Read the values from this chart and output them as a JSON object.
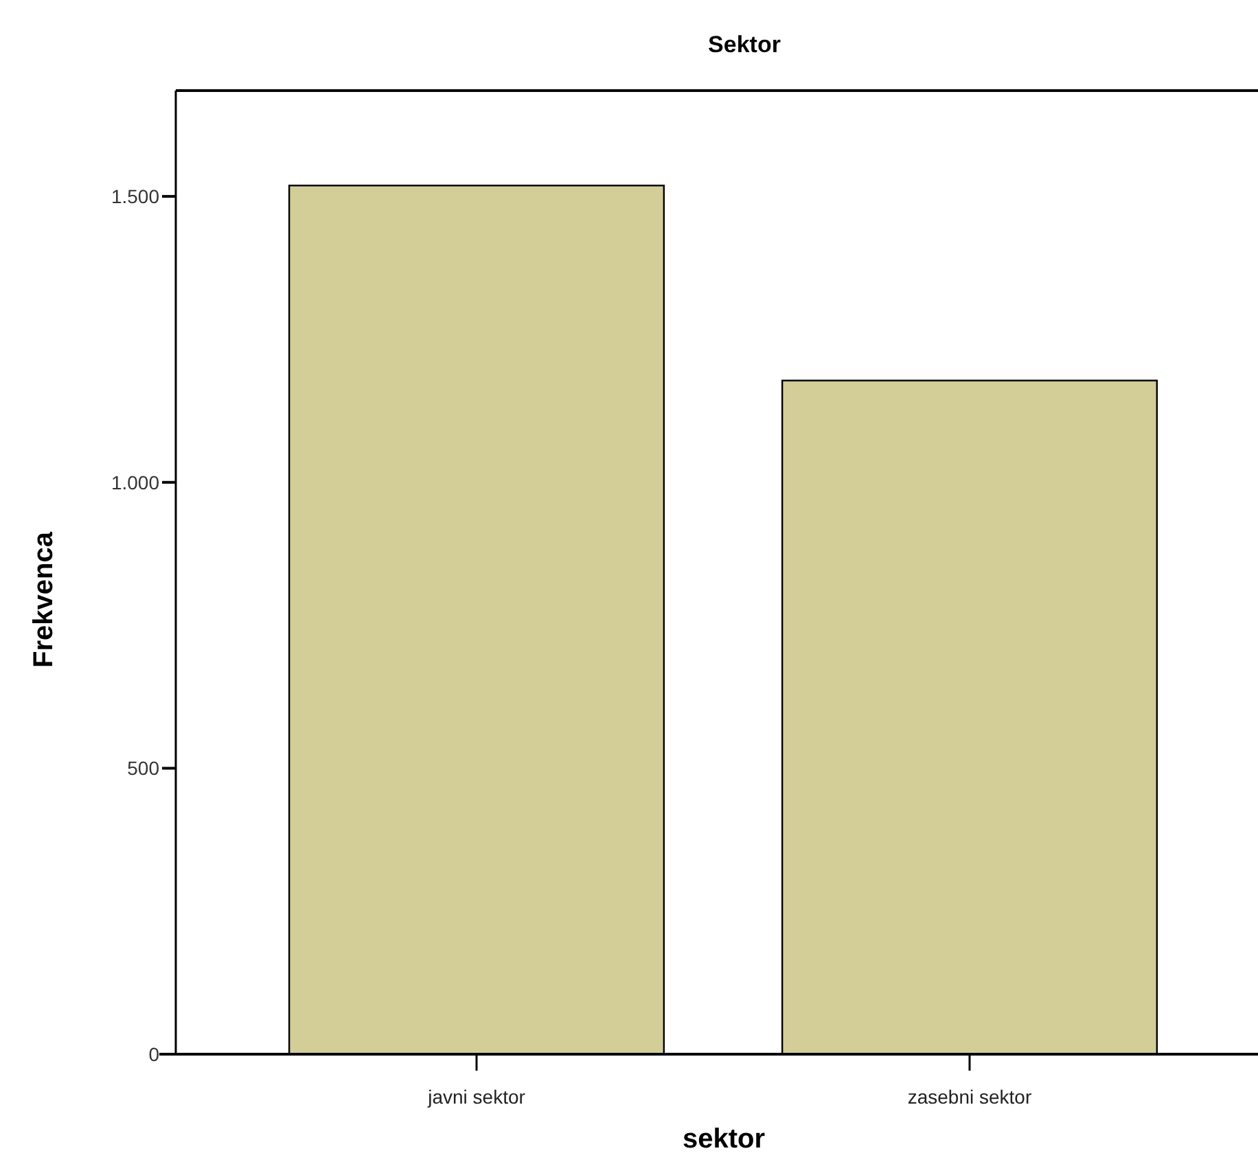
{
  "chart_data": {
    "type": "bar",
    "title": "Sektor",
    "xlabel": "sektor",
    "ylabel": "Frekvenca",
    "categories": [
      "javni sektor",
      "zasebni sektor"
    ],
    "values": [
      1519,
      1178
    ],
    "color": "#d3ce97",
    "ylim": [
      0,
      1685
    ],
    "yticks": [
      0,
      500,
      {
        "value": 1000,
        "label": "1.000"
      },
      {
        "value": 1500,
        "label": "1.500"
      }
    ],
    "grid": false
  }
}
